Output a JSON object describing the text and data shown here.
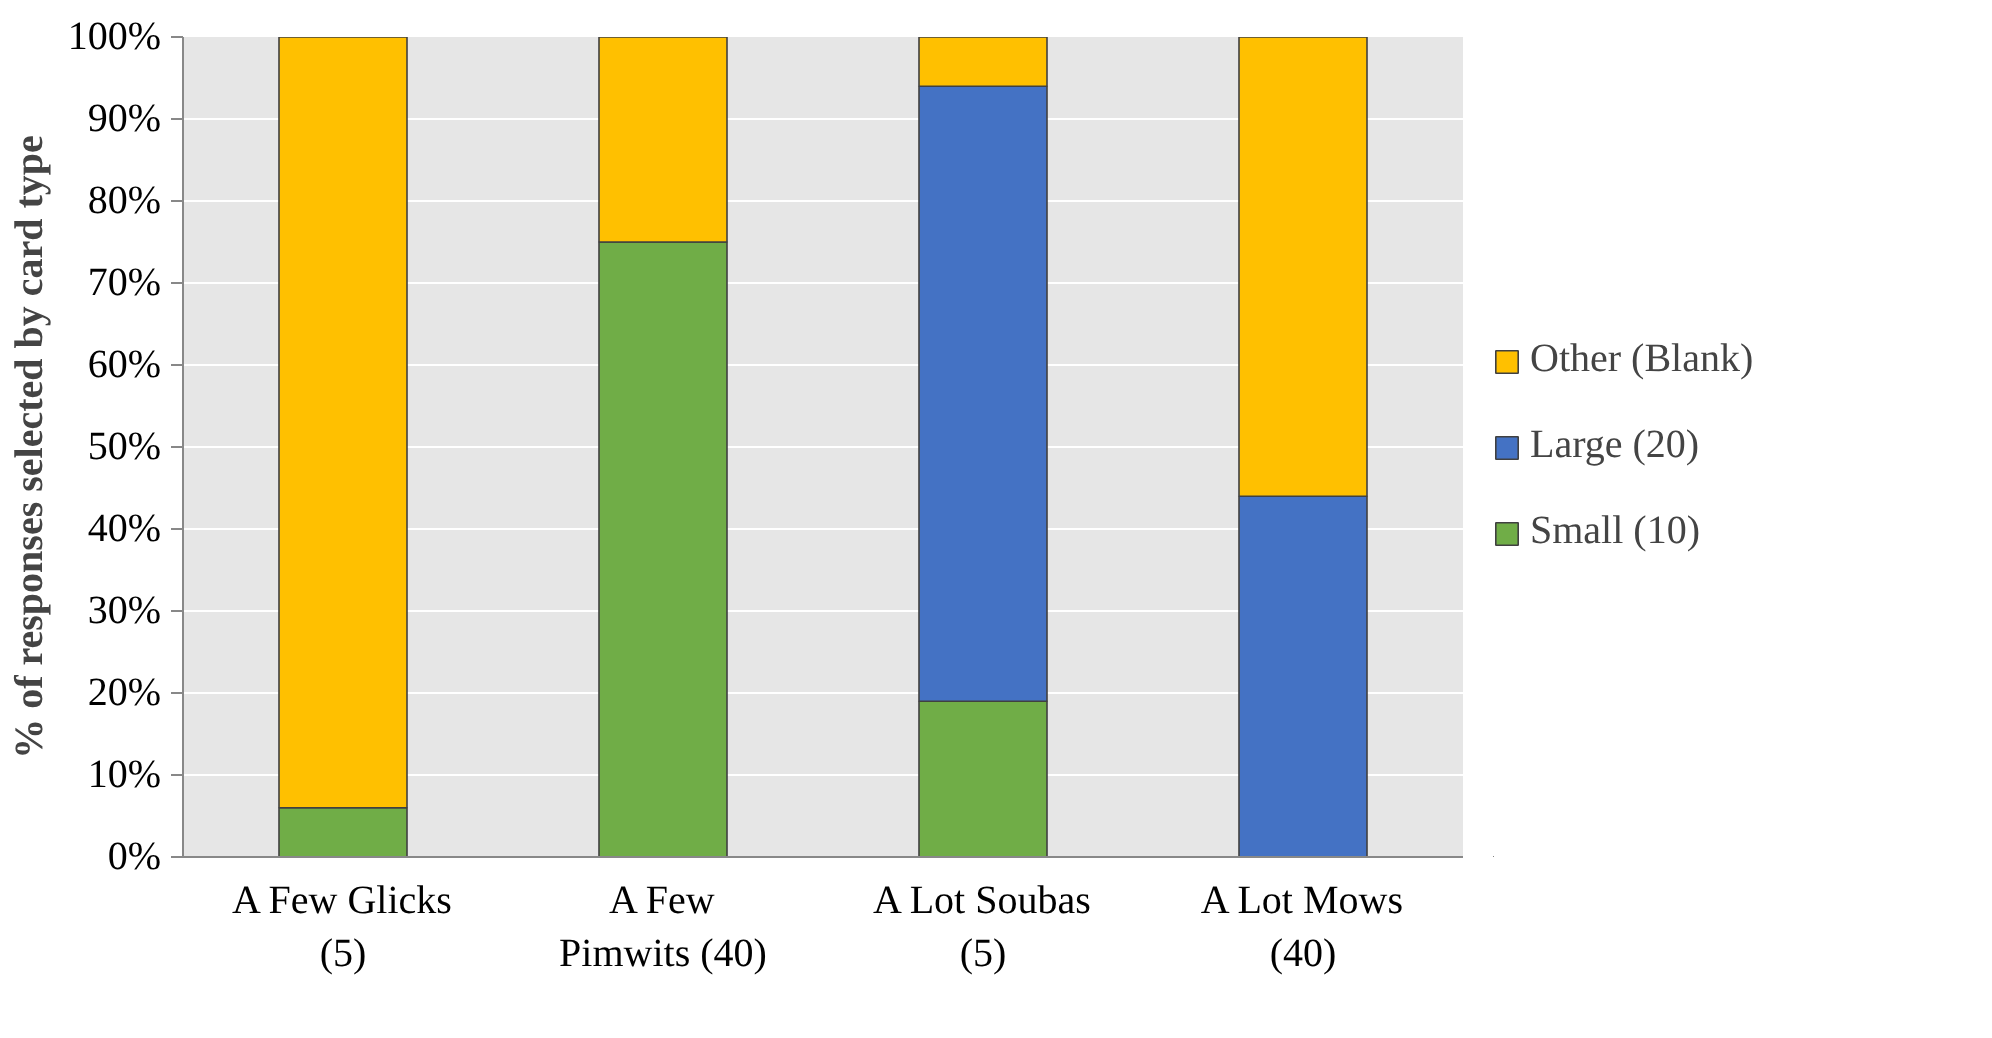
{
  "chart_data": {
    "type": "bar",
    "stacked": true,
    "ylabel": "% of responses selected by card type",
    "categories": [
      "A Few Glicks\n(5)",
      "A Few\nPimwits (40)",
      "A Lot Soubas\n(5)",
      "A Lot Mows\n(40)"
    ],
    "series": [
      {
        "name": "Small (10)",
        "color": "#70ad47",
        "values": [
          6,
          75,
          19,
          null
        ]
      },
      {
        "name": "Large (20)",
        "color": "#4472c4",
        "values": [
          null,
          null,
          75,
          44
        ]
      },
      {
        "name": "Other (Blank)",
        "color": "#ffc000",
        "values": [
          94,
          25,
          6,
          56
        ]
      }
    ],
    "ylim": [
      0,
      100
    ],
    "yticks": [
      {
        "value": 0,
        "label": "0%"
      },
      {
        "value": 10,
        "label": "10%"
      },
      {
        "value": 20,
        "label": "20%"
      },
      {
        "value": 30,
        "label": "30%"
      },
      {
        "value": 40,
        "label": "40%"
      },
      {
        "value": 50,
        "label": "50%"
      },
      {
        "value": 60,
        "label": "60%"
      },
      {
        "value": 70,
        "label": "70%"
      },
      {
        "value": 80,
        "label": "80%"
      },
      {
        "value": 90,
        "label": "90%"
      },
      {
        "value": 100,
        "label": "100%"
      }
    ],
    "grid": "y",
    "legend": "right"
  }
}
